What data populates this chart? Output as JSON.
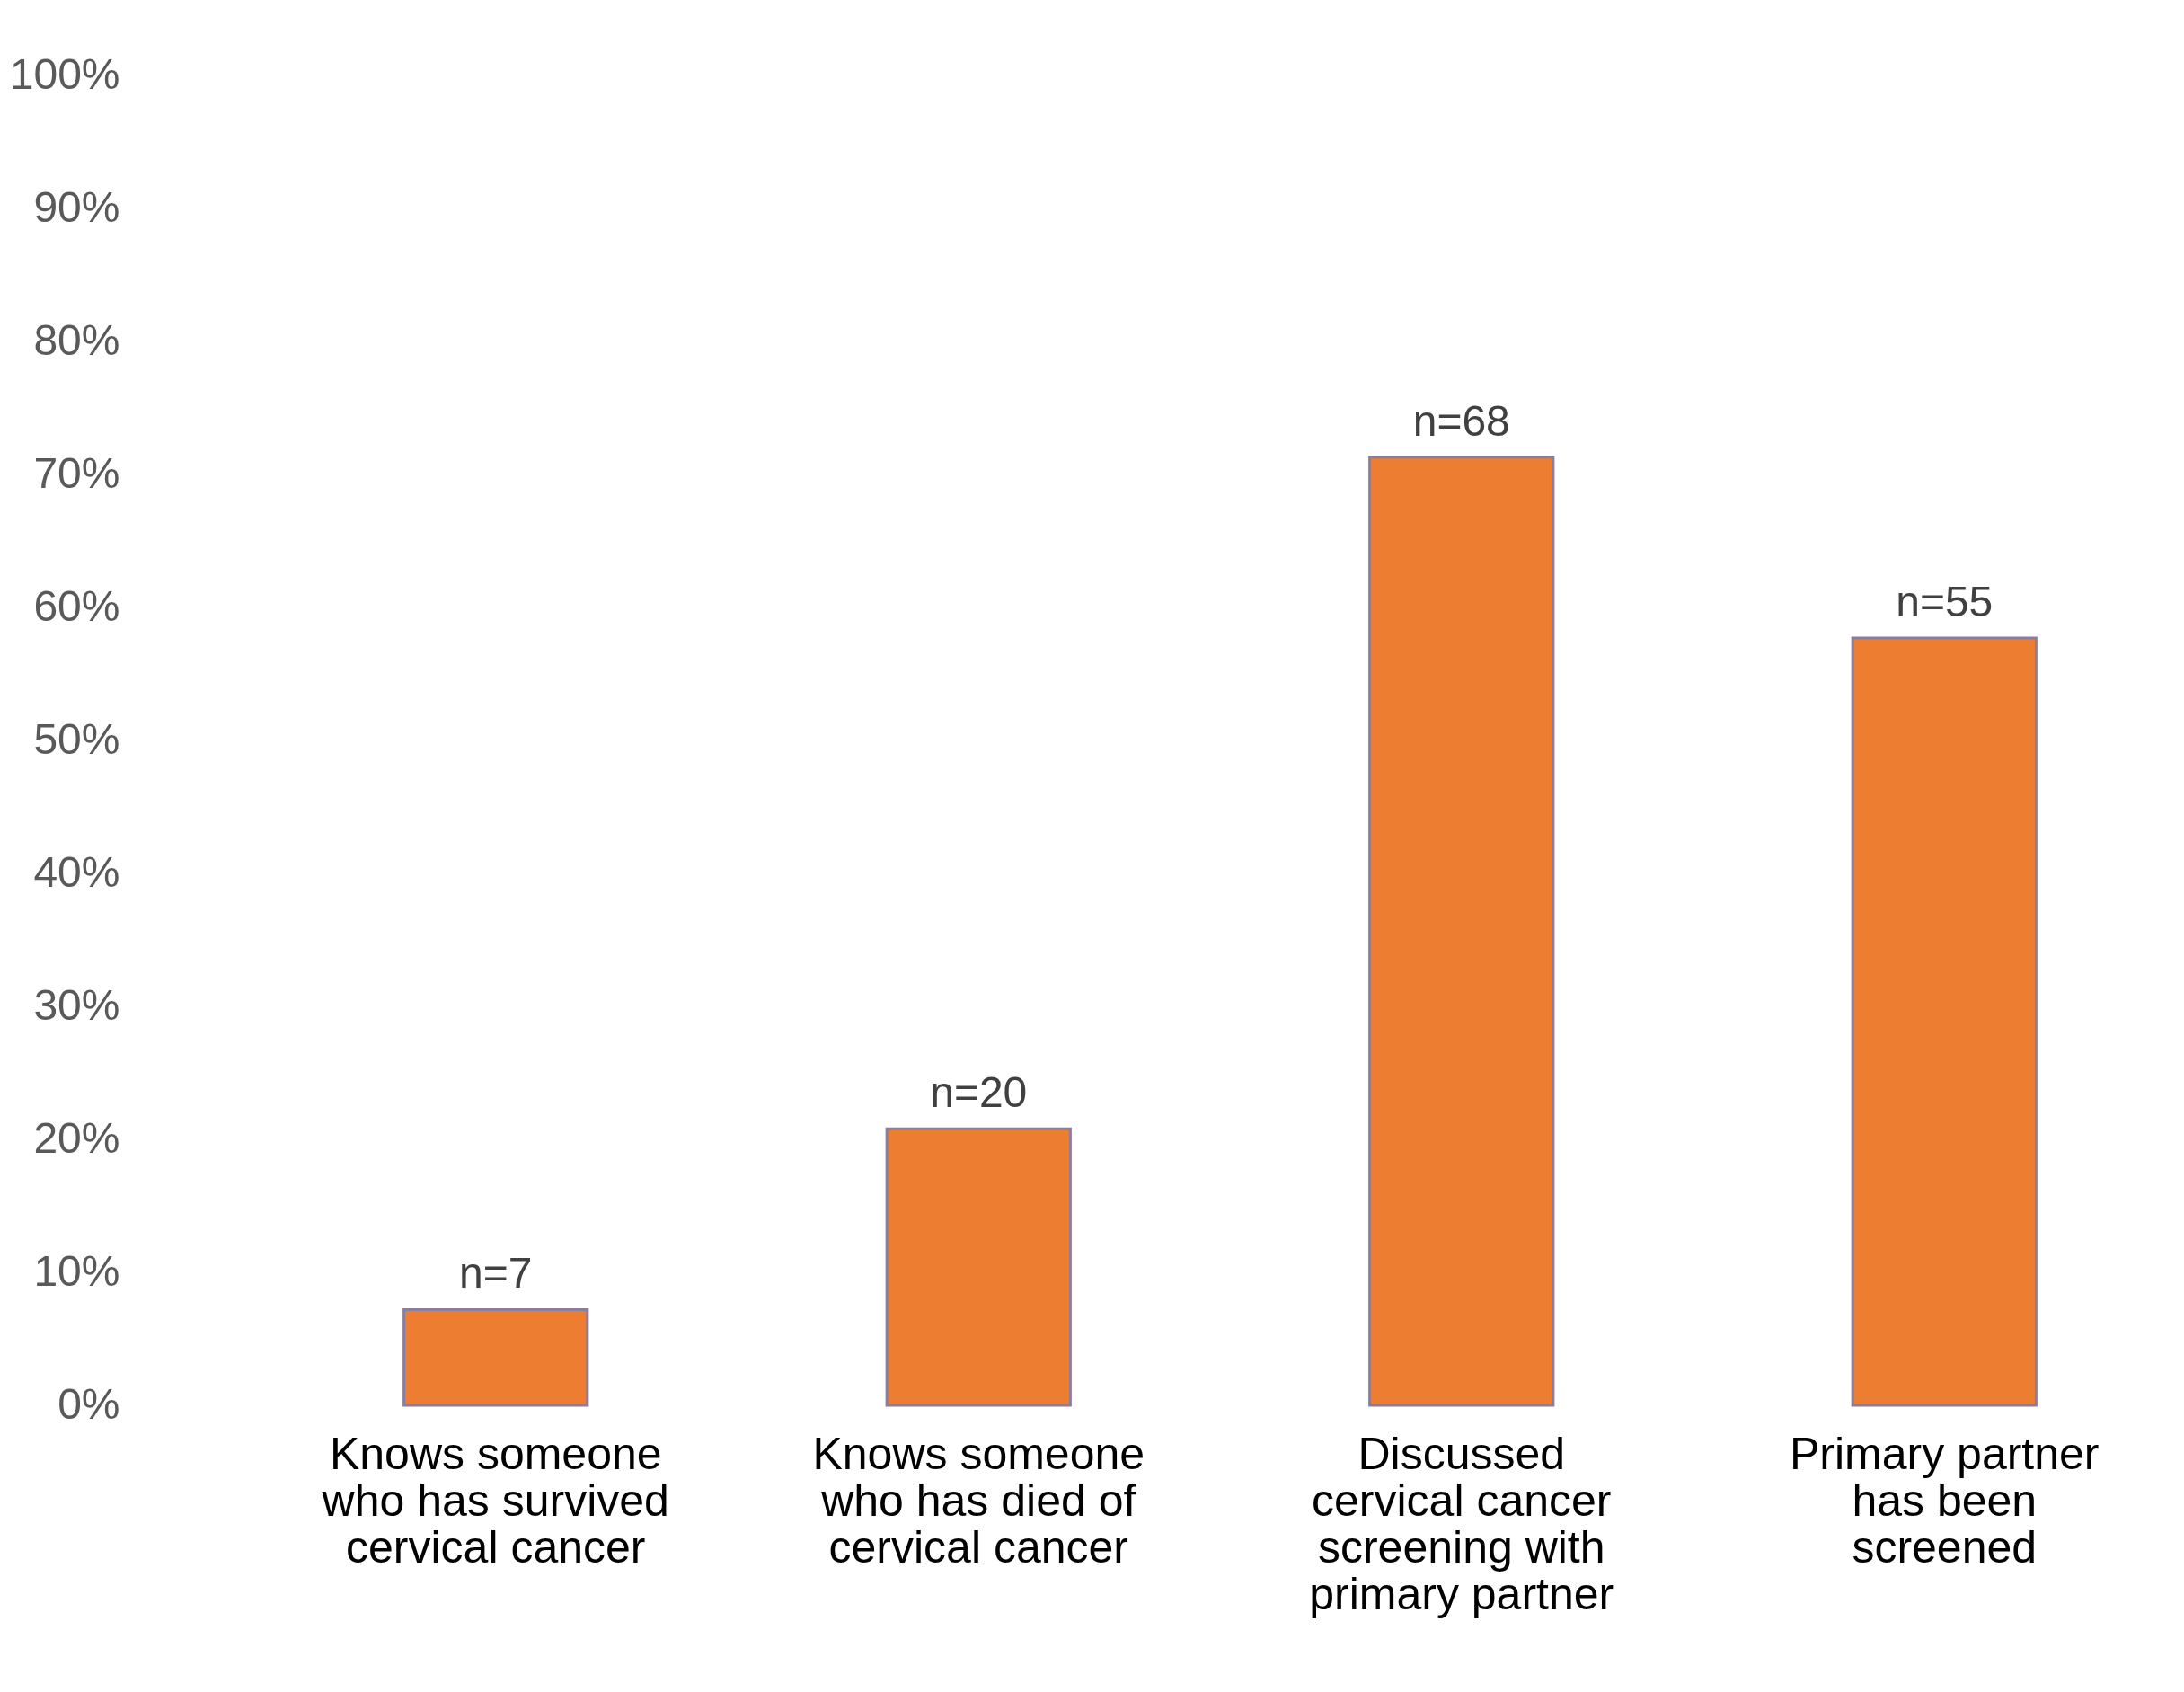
{
  "chart_data": {
    "type": "bar",
    "categories": [
      "Knows someone who has survived cervical cancer",
      "Knows someone who has died of cervical cancer",
      "Discussed cervical cancer screening with primary partner",
      "Primary partner has been screened"
    ],
    "values": [
      7.2,
      20.8,
      71.3,
      57.7
    ],
    "annotations": [
      {
        "text": "n=7",
        "x": "Knows someone who has survived cervical cancer",
        "y": 7.2
      },
      {
        "text": "n=20",
        "x": "Knows someone who has died of cervical cancer",
        "y": 20.8
      },
      {
        "text": "n=68",
        "x": "Discussed cervical cancer screening with primary partner",
        "y": 71.3
      },
      {
        "text": "n=55",
        "x": "Primary partner has been screened",
        "y": 57.7
      }
    ],
    "color": "#ed7d31",
    "ylim": [
      0,
      100
    ],
    "yticks": [
      {
        "value": 0,
        "label": "0%"
      },
      {
        "value": 10,
        "label": "10%"
      },
      {
        "value": 20,
        "label": "20%"
      },
      {
        "value": 30,
        "label": "30%"
      },
      {
        "value": 40,
        "label": "40%"
      },
      {
        "value": 50,
        "label": "50%"
      },
      {
        "value": 60,
        "label": "60%"
      },
      {
        "value": 70,
        "label": "70%"
      },
      {
        "value": 80,
        "label": "80%"
      },
      {
        "value": 90,
        "label": "90%"
      },
      {
        "value": 100,
        "label": "100%"
      }
    ]
  }
}
